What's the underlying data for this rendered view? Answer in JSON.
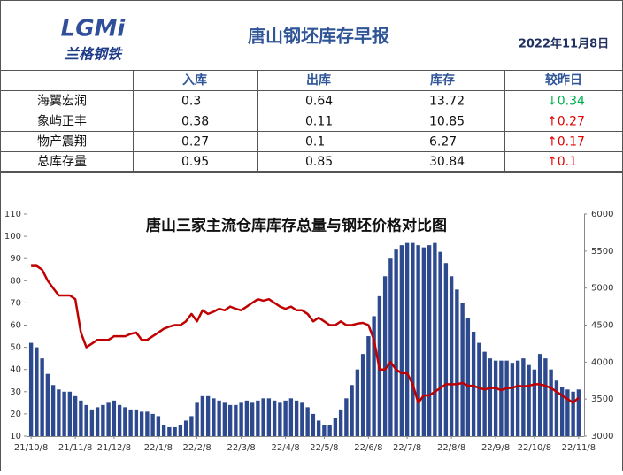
{
  "header": {
    "logo": "LGMi",
    "brand": "兰格钢铁",
    "title": "唐山钢坯库存早报",
    "date": "2022年11月8日"
  },
  "table": {
    "header": [
      "入库",
      "出库",
      "库存",
      "较昨日"
    ],
    "rows": [
      [
        "海翼宏润",
        "0.3",
        "0.64",
        "13.72",
        "↓0.34"
      ],
      [
        "象屿正丰",
        "0.38",
        "0.11",
        "10.85",
        "↑0.27"
      ],
      [
        "物产震翔",
        "0.27",
        "0.1",
        "6.27",
        "↑0.17"
      ],
      [
        "总库存量",
        "0.95",
        "0.85",
        "30.84",
        "↑0.1"
      ]
    ]
  },
  "chart_data": {
    "type": "bar",
    "title": "唐山三家主流仓库库存总量与钢坯价格对比图",
    "categories": [
      "21/10/8",
      null,
      null,
      null,
      null,
      null,
      null,
      null,
      "21/11/8",
      null,
      null,
      null,
      null,
      null,
      null,
      "21/12/8",
      null,
      null,
      null,
      null,
      null,
      null,
      null,
      "22/1/8",
      null,
      null,
      null,
      null,
      null,
      null,
      "22/2/8",
      null,
      null,
      null,
      null,
      null,
      null,
      null,
      "22/3/8",
      null,
      null,
      null,
      null,
      null,
      null,
      null,
      "22/4/8",
      null,
      null,
      null,
      null,
      null,
      null,
      "22/5/8",
      null,
      null,
      null,
      null,
      null,
      null,
      null,
      "22/6/8",
      null,
      null,
      null,
      null,
      null,
      null,
      "22/7/8",
      null,
      null,
      null,
      null,
      null,
      null,
      null,
      "22/8/8",
      null,
      null,
      null,
      null,
      null,
      null,
      null,
      "22/9/8",
      null,
      null,
      null,
      null,
      null,
      null,
      "22/10/8",
      null,
      null,
      null,
      null,
      null,
      null,
      null,
      "22/11/8"
    ],
    "series": [
      {
        "type": "bar",
        "color": "#2e4a8e",
        "values": [
          52,
          50,
          45,
          38,
          33,
          31,
          30,
          30,
          28,
          26,
          24,
          22,
          23,
          24,
          25,
          26,
          24,
          23,
          22,
          22,
          21,
          21,
          20,
          19,
          15,
          14,
          14,
          15,
          17,
          19,
          25,
          28,
          28,
          27,
          26,
          25,
          24,
          24,
          25,
          26,
          25,
          26,
          27,
          27,
          26,
          25,
          26,
          27,
          26,
          25,
          23,
          20,
          17,
          15,
          15,
          18,
          22,
          27,
          33,
          40,
          47,
          55,
          64,
          73,
          82,
          90,
          94,
          96,
          97,
          97,
          96,
          95,
          96,
          97,
          93,
          88,
          82,
          76,
          70,
          63,
          57,
          52,
          48,
          45,
          44,
          44,
          44,
          43,
          44,
          45,
          42,
          40,
          47,
          45,
          40,
          35,
          32,
          31,
          30,
          31
        ]
      },
      {
        "type": "line",
        "color": "#c00000",
        "axis": "y2",
        "values": [
          5300,
          5300,
          5250,
          5100,
          5000,
          4900,
          4900,
          4900,
          4850,
          4400,
          4200,
          4250,
          4300,
          4300,
          4300,
          4350,
          4350,
          4350,
          4380,
          4400,
          4300,
          4300,
          4350,
          4400,
          4450,
          4480,
          4500,
          4500,
          4550,
          4650,
          4550,
          4700,
          4650,
          4680,
          4720,
          4700,
          4750,
          4720,
          4700,
          4750,
          4800,
          4850,
          4830,
          4850,
          4800,
          4750,
          4720,
          4750,
          4700,
          4700,
          4650,
          4550,
          4600,
          4550,
          4500,
          4500,
          4550,
          4500,
          4500,
          4520,
          4530,
          4500,
          4300,
          3900,
          3900,
          4000,
          3900,
          3850,
          3850,
          3700,
          3450,
          3550,
          3550,
          3600,
          3650,
          3700,
          3700,
          3700,
          3720,
          3680,
          3680,
          3650,
          3630,
          3650,
          3650,
          3620,
          3650,
          3650,
          3680,
          3670,
          3680,
          3700,
          3700,
          3680,
          3650,
          3600,
          3550,
          3500,
          3450,
          3520
        ]
      }
    ],
    "ylim": [
      10,
      110
    ],
    "yticks": [
      10,
      20,
      30,
      40,
      50,
      60,
      70,
      80,
      90,
      100,
      110
    ],
    "y2lim": [
      3000,
      6000
    ],
    "y2ticks": [
      3000,
      3500,
      4000,
      4500,
      5000,
      5500,
      6000
    ]
  }
}
